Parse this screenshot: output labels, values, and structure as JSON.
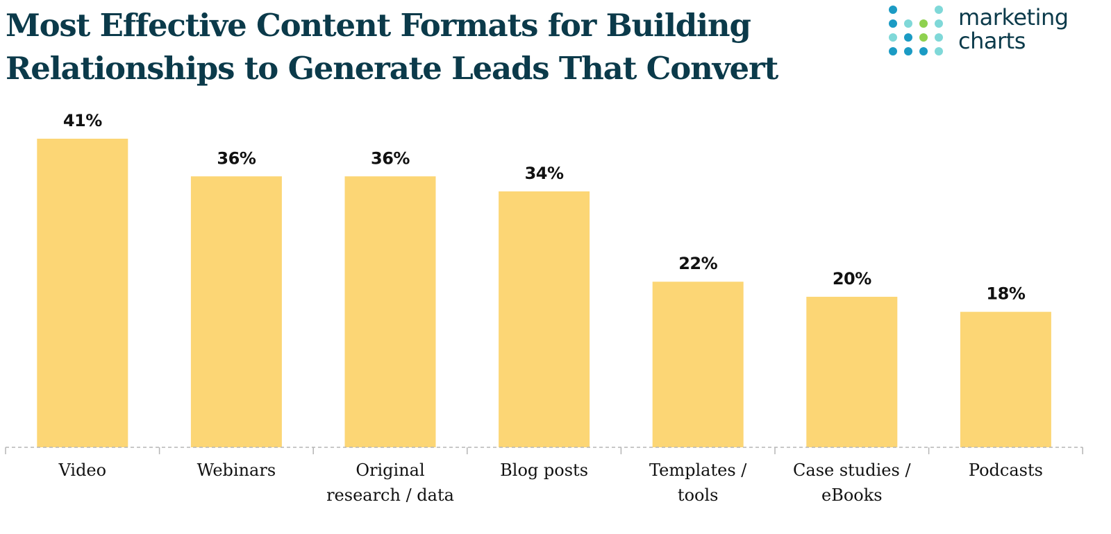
{
  "logo": {
    "line1": "marketing",
    "line2": "charts"
  },
  "colors": {
    "bar": "#fcd675",
    "title": "#0b3a4a",
    "axis": "#b5b5b5",
    "logo_blue": "#1b9bc4",
    "logo_teal": "#7fd8d8",
    "logo_green": "#8fd14f"
  },
  "chart_data": {
    "type": "bar",
    "title": "Most Effective Content Formats for Building Relationships to Generate Leads That Convert",
    "title_lines": [
      "Most Effective Content Formats for Building",
      "Relationships to Generate Leads That Convert"
    ],
    "categories": [
      "Video",
      "Webinars",
      "Original research / data",
      "Blog posts",
      "Templates / tools",
      "Case studies / eBooks",
      "Podcasts"
    ],
    "category_lines": [
      [
        "Video"
      ],
      [
        "Webinars"
      ],
      [
        "Original",
        "research / data"
      ],
      [
        "Blog posts"
      ],
      [
        "Templates /",
        "tools"
      ],
      [
        "Case studies /",
        "eBooks"
      ],
      [
        "Podcasts"
      ]
    ],
    "values": [
      41,
      36,
      36,
      34,
      22,
      20,
      18
    ],
    "value_labels": [
      "41%",
      "36%",
      "36%",
      "34%",
      "22%",
      "20%",
      "18%"
    ],
    "xlabel": "",
    "ylabel": "",
    "ylim": [
      0,
      41
    ],
    "grid": false,
    "legend": "none"
  }
}
